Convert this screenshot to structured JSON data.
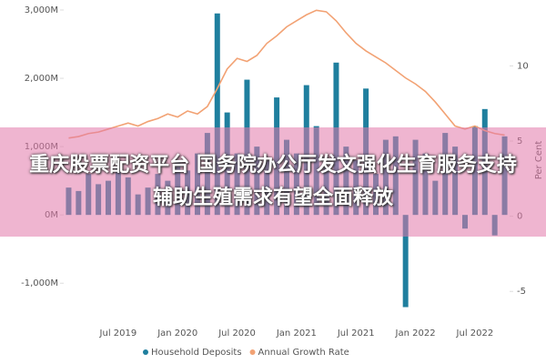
{
  "chart_data": {
    "type": "bar-line",
    "categories": [
      null,
      null,
      null,
      null,
      null,
      "Jul 2019",
      null,
      null,
      null,
      null,
      null,
      "Jan 2020",
      null,
      null,
      null,
      null,
      null,
      "Jul 2020",
      null,
      null,
      null,
      null,
      null,
      "Jan 2021",
      null,
      null,
      null,
      null,
      null,
      "Jul 2021",
      null,
      null,
      null,
      null,
      null,
      "Jan 2022",
      null,
      null,
      null,
      null,
      null,
      "Jul 2022",
      null,
      null,
      null
    ],
    "series": [
      {
        "name": "Household Deposits",
        "color": "#1f7f9e",
        "kind": "bar",
        "values": [
          400,
          350,
          600,
          450,
          500,
          700,
          550,
          300,
          400,
          600,
          500,
          800,
          650,
          900,
          1200,
          2950,
          1500,
          900,
          1980,
          1000,
          800,
          1720,
          1100,
          900,
          1900,
          1300,
          700,
          2230,
          1000,
          800,
          1850,
          600,
          1100,
          1150,
          -1350,
          1100,
          900,
          500,
          1200,
          1000,
          -200,
          1300,
          1550,
          -300,
          1150
        ]
      },
      {
        "name": "Annual Growth Rate",
        "color": "#f2a274",
        "kind": "line",
        "axis": "y2",
        "values": [
          5.2,
          5.3,
          5.5,
          5.6,
          5.8,
          6.0,
          6.2,
          6.0,
          6.3,
          6.5,
          6.8,
          6.6,
          7.0,
          6.8,
          7.3,
          8.5,
          9.8,
          10.5,
          10.3,
          10.7,
          11.5,
          12.0,
          12.6,
          13.0,
          13.4,
          13.7,
          13.6,
          13.0,
          12.2,
          11.5,
          11.0,
          10.6,
          10.2,
          9.7,
          9.2,
          8.8,
          8.3,
          7.6,
          6.8,
          6.0,
          5.8,
          6.0,
          5.7,
          5.5,
          5.4
        ]
      }
    ],
    "ylim": [
      -1450,
      3040
    ],
    "yticks": [
      {
        "value": -1000,
        "label": "-1,000M"
      },
      {
        "value": 0,
        "label": "0M"
      },
      {
        "value": 1000,
        "label": "1,000M"
      },
      {
        "value": 2000,
        "label": "2,000M"
      },
      {
        "value": 3000,
        "label": "3,000M"
      }
    ],
    "y2lim": [
      -6.5,
      13.9
    ],
    "y2ticks": [
      -5,
      0,
      5,
      10
    ],
    "y2label": "Per Cent"
  },
  "banner": {
    "text": "重庆股票配资平台 国务院办公厅发文强化生育服务支持 辅助生殖需求有望全面释放"
  }
}
